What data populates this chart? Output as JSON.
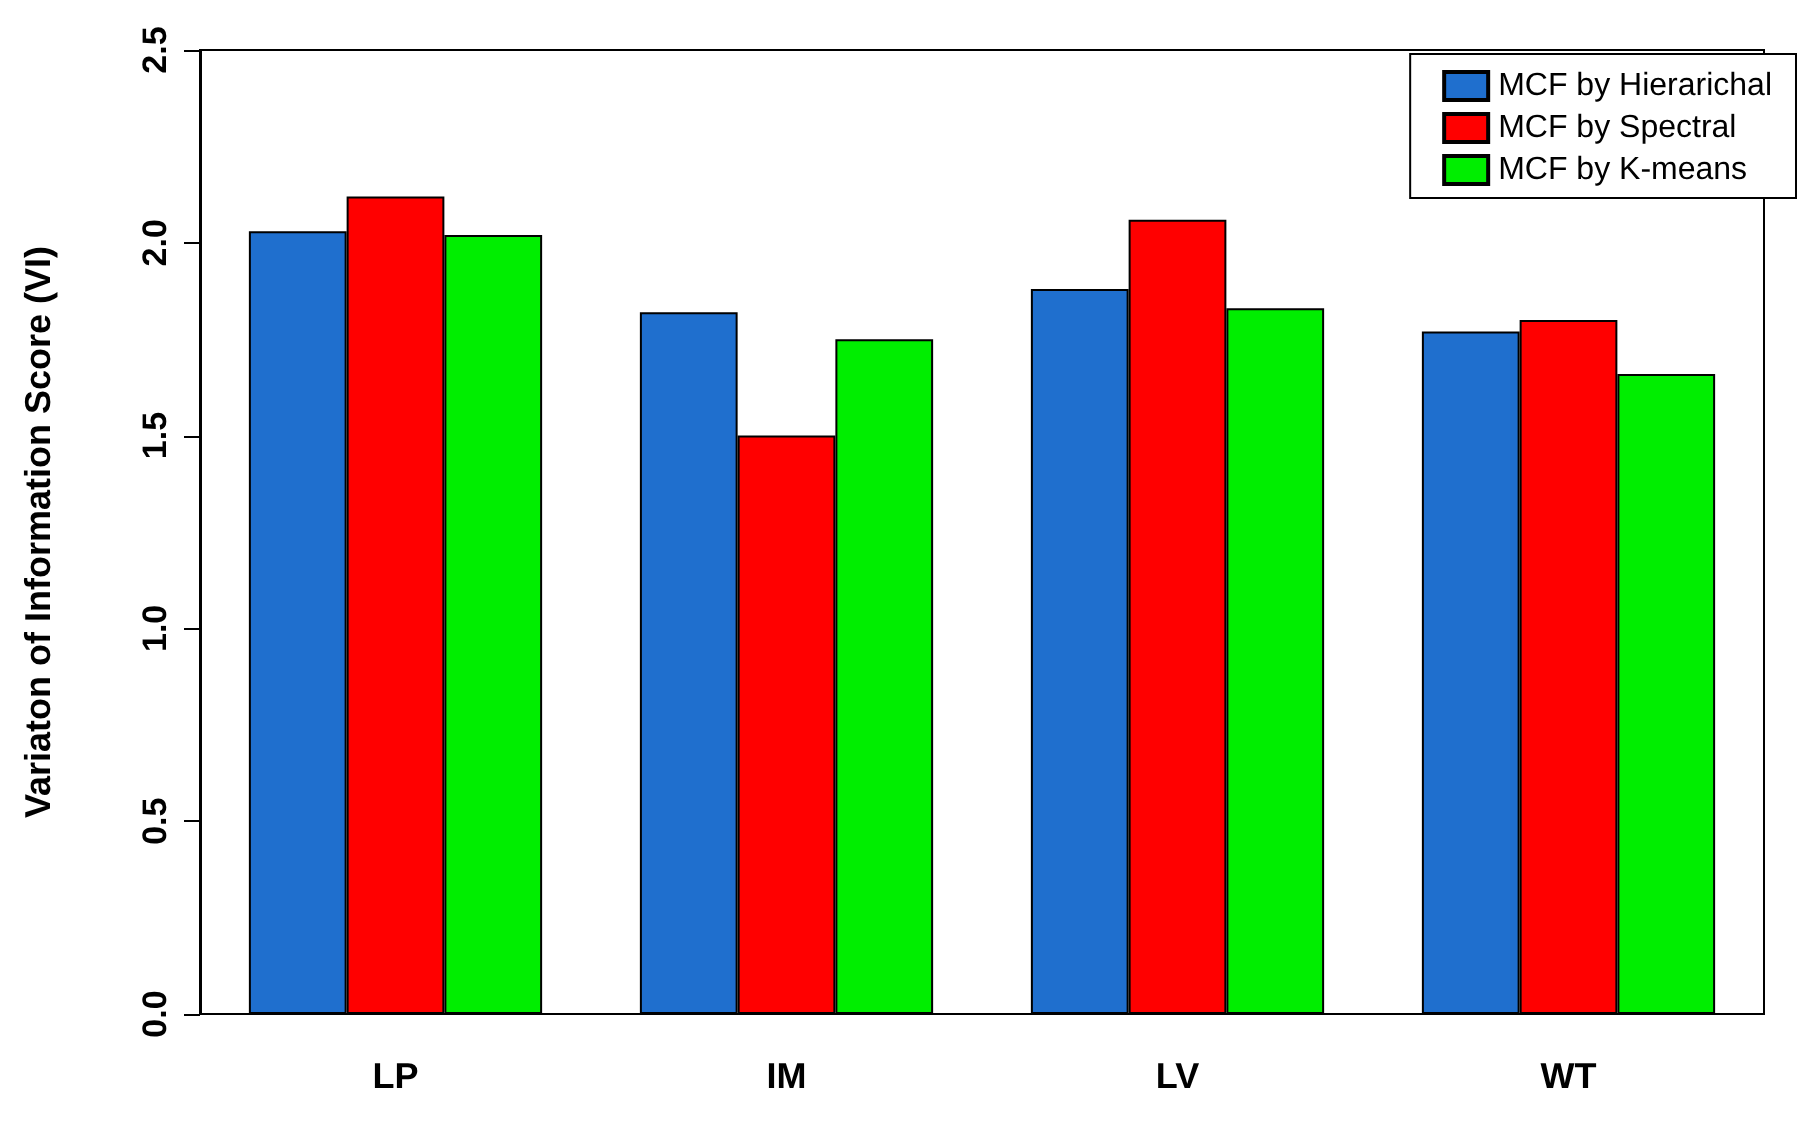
{
  "chart_data": {
    "type": "bar",
    "ylabel": "Variaton of Information Score (VI)",
    "categories": [
      "LP",
      "IM",
      "LV",
      "WT"
    ],
    "series": [
      {
        "name": "MCF by Hierarichal",
        "color": "#1f6fce",
        "values": [
          2.03,
          1.82,
          1.88,
          1.77
        ]
      },
      {
        "name": "MCF by Spectral",
        "color": "#ff0000",
        "values": [
          2.12,
          1.5,
          2.06,
          1.8
        ]
      },
      {
        "name": "MCF by K-means",
        "color": "#00ee00",
        "values": [
          2.02,
          1.75,
          1.83,
          1.66
        ]
      }
    ],
    "ylim": [
      0,
      2.5
    ],
    "yticks": [
      {
        "value": 0,
        "label": "0.0"
      },
      0.5,
      {
        "value": 1,
        "label": "1.0"
      },
      1.5,
      {
        "value": 2,
        "label": "2.0"
      },
      2.5
    ],
    "legend": "top right",
    "grid": false
  }
}
